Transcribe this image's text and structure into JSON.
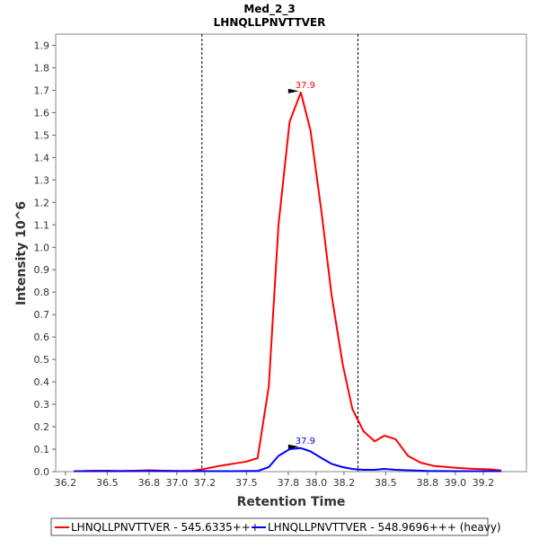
{
  "chart_data": {
    "type": "line",
    "title": "Med_2_3",
    "subtitle": "LHNQLLPNVTTVER",
    "xlabel": "Retention Time",
    "ylabel": "Intensity 10^6",
    "xlim": [
      36.13,
      39.51
    ],
    "ylim": [
      0,
      1.95
    ],
    "xticks": [
      36.2,
      36.5,
      36.8,
      37.0,
      37.2,
      37.5,
      37.8,
      38.0,
      38.2,
      38.5,
      38.8,
      39.0,
      39.2
    ],
    "yticks": [
      0.0,
      0.1,
      0.2,
      0.3,
      0.4,
      0.5,
      0.6,
      0.7,
      0.8,
      0.9,
      1.0,
      1.1,
      1.2,
      1.3,
      1.4,
      1.5,
      1.6,
      1.7,
      1.8,
      1.9
    ],
    "xtick_labels": [
      "36.2",
      "36.5",
      "36.8",
      "37.0",
      "37.2",
      "37.5",
      "37.8",
      "38.0",
      "38.2",
      "38.5",
      "38.8",
      "39.0",
      "39.2"
    ],
    "ytick_labels": [
      "0.0",
      "0.1",
      "0.2",
      "0.3",
      "0.4",
      "0.5",
      "0.6",
      "0.7",
      "0.8",
      "0.9",
      "1.0",
      "1.1",
      "1.2",
      "1.3",
      "1.4",
      "1.5",
      "1.6",
      "1.7",
      "1.8",
      "1.9"
    ],
    "boundaries": [
      37.18,
      38.3
    ],
    "series": [
      {
        "name": "LHNQLLPNVTTVER - 545.6335+++",
        "color": "#ff0000",
        "peak_label": "37.9",
        "peak": [
          37.89,
          1.69
        ],
        "x": [
          36.33,
          36.4,
          36.5,
          36.6,
          36.7,
          36.8,
          36.9,
          37.0,
          37.1,
          37.18,
          37.3,
          37.4,
          37.5,
          37.58,
          37.66,
          37.73,
          37.81,
          37.89,
          37.96,
          38.04,
          38.11,
          38.19,
          38.26,
          38.34,
          38.42,
          38.49,
          38.57,
          38.66,
          38.75,
          38.85,
          38.95,
          39.05,
          39.15,
          39.25,
          39.33
        ],
        "y": [
          0.003,
          0.004,
          0.004,
          0.003,
          0.004,
          0.006,
          0.004,
          0.003,
          0.003,
          0.01,
          0.025,
          0.035,
          0.045,
          0.06,
          0.38,
          1.1,
          1.56,
          1.69,
          1.52,
          1.15,
          0.79,
          0.48,
          0.28,
          0.18,
          0.135,
          0.16,
          0.145,
          0.07,
          0.04,
          0.025,
          0.02,
          0.015,
          0.012,
          0.01,
          0.005
        ]
      },
      {
        "name": "LHNQLLPNVTTVER - 548.9696+++ (heavy)",
        "color": "#0000ff",
        "peak_label": "37.9",
        "peak": [
          37.89,
          0.105
        ],
        "x": [
          36.26,
          36.4,
          36.6,
          36.8,
          37.0,
          37.2,
          37.4,
          37.58,
          37.66,
          37.73,
          37.81,
          37.89,
          37.96,
          38.04,
          38.11,
          38.19,
          38.26,
          38.34,
          38.42,
          38.49,
          38.57,
          38.66,
          38.8,
          39.0,
          39.2,
          39.33
        ],
        "y": [
          0.002,
          0.002,
          0.002,
          0.003,
          0.002,
          0.002,
          0.002,
          0.003,
          0.02,
          0.07,
          0.1,
          0.105,
          0.09,
          0.06,
          0.035,
          0.02,
          0.012,
          0.008,
          0.008,
          0.012,
          0.008,
          0.006,
          0.003,
          0.002,
          0.002,
          0.002
        ]
      }
    ],
    "legend_position": "bottom"
  }
}
